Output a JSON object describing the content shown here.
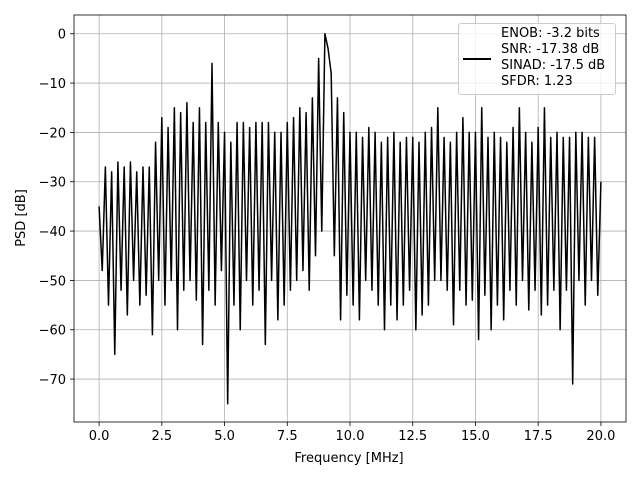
{
  "chart_data": {
    "type": "line",
    "xlabel": "Frequency [MHz]",
    "ylabel": "PSD [dB]",
    "xlim": [
      -1.0,
      21.0
    ],
    "ylim": [
      -78.7,
      3.8
    ],
    "xticks": [
      {
        "value": 0,
        "label": "0.0"
      },
      2.5,
      {
        "value": 5,
        "label": "5.0"
      },
      7.5,
      {
        "value": 10,
        "label": "10.0"
      },
      12.5,
      {
        "value": 15,
        "label": "15.0"
      },
      17.5,
      {
        "value": 20,
        "label": "20.0"
      }
    ],
    "yticks": [
      {
        "value": -70,
        "label": "−70"
      },
      {
        "value": -60,
        "label": "−60"
      },
      {
        "value": -50,
        "label": "−50"
      },
      {
        "value": -40,
        "label": "−40"
      },
      {
        "value": -30,
        "label": "−30"
      },
      {
        "value": -20,
        "label": "−20"
      },
      {
        "value": -10,
        "label": "−10"
      },
      0
    ],
    "grid": true,
    "legend": "upper right",
    "x": [
      0,
      0.125,
      0.25,
      0.375,
      0.5,
      0.625,
      0.75,
      0.875,
      1,
      1.125,
      1.25,
      1.375,
      1.5,
      1.625,
      1.75,
      1.875,
      2,
      2.125,
      2.25,
      2.375,
      2.5,
      2.625,
      2.75,
      2.875,
      3,
      3.125,
      3.25,
      3.375,
      3.5,
      3.625,
      3.75,
      3.875,
      4,
      4.125,
      4.25,
      4.375,
      4.5,
      4.625,
      4.75,
      4.875,
      5,
      5.125,
      5.25,
      5.375,
      5.5,
      5.625,
      5.75,
      5.875,
      6,
      6.125,
      6.25,
      6.375,
      6.5,
      6.625,
      6.75,
      6.875,
      7,
      7.125,
      7.25,
      7.375,
      7.5,
      7.625,
      7.75,
      7.875,
      8,
      8.125,
      8.25,
      8.375,
      8.5,
      8.625,
      8.75,
      8.875,
      9,
      9.125,
      9.25,
      9.375,
      9.5,
      9.625,
      9.75,
      9.875,
      10,
      10.125,
      10.25,
      10.375,
      10.5,
      10.625,
      10.75,
      10.875,
      11,
      11.125,
      11.25,
      11.375,
      11.5,
      11.625,
      11.75,
      11.875,
      12,
      12.125,
      12.25,
      12.375,
      12.5,
      12.625,
      12.75,
      12.875,
      13,
      13.125,
      13.25,
      13.375,
      13.5,
      13.625,
      13.75,
      13.875,
      14,
      14.125,
      14.25,
      14.375,
      14.5,
      14.625,
      14.75,
      14.875,
      15,
      15.125,
      15.25,
      15.375,
      15.5,
      15.625,
      15.75,
      15.875,
      16,
      16.125,
      16.25,
      16.375,
      16.5,
      16.625,
      16.75,
      16.875,
      17,
      17.125,
      17.25,
      17.375,
      17.5,
      17.625,
      17.75,
      17.875,
      18,
      18.125,
      18.25,
      18.375,
      18.5,
      18.625,
      18.75,
      18.875,
      19,
      19.125,
      19.25,
      19.375,
      19.5,
      19.625,
      19.75,
      19.875,
      20
    ],
    "series": [
      {
        "name": "ENOB: -3.2 bits\nSNR: -17.38 dB\nSINAD: -17.5 dB\nSFDR: 1.23",
        "color": "#000000",
        "values": [
          -35,
          -48,
          -27,
          -55,
          -28,
          -65,
          -26,
          -52,
          -27,
          -57,
          -26,
          -50,
          -28,
          -55,
          -27,
          -53,
          -27,
          -61,
          -22,
          -50,
          -17,
          -55,
          -19,
          -50,
          -15,
          -60,
          -16,
          -52,
          -14,
          -50,
          -18,
          -54,
          -15,
          -63,
          -18,
          -52,
          -6,
          -55,
          -18,
          -48,
          -20,
          -75,
          -22,
          -55,
          -18,
          -60,
          -18,
          -50,
          -19,
          -55,
          -18,
          -52,
          -18,
          -63,
          -18,
          -50,
          -20,
          -58,
          -20,
          -55,
          -18,
          -52,
          -17,
          -50,
          -15,
          -48,
          -16,
          -52,
          -13,
          -45,
          -5,
          -40,
          0,
          -3,
          -8,
          -45,
          -13,
          -58,
          -16,
          -53,
          -20,
          -55,
          -20,
          -58,
          -21,
          -50,
          -19,
          -52,
          -20,
          -55,
          -22,
          -60,
          -21,
          -55,
          -20,
          -58,
          -22,
          -55,
          -21,
          -52,
          -21,
          -60,
          -22,
          -57,
          -20,
          -55,
          -19,
          -50,
          -15,
          -50,
          -21,
          -52,
          -22,
          -59,
          -20,
          -52,
          -17,
          -55,
          -20,
          -54,
          -20,
          -62,
          -15,
          -53,
          -21,
          -60,
          -20,
          -55,
          -21,
          -58,
          -22,
          -52,
          -19,
          -55,
          -15,
          -50,
          -20,
          -56,
          -22,
          -52,
          -19,
          -57,
          -15,
          -55,
          -21,
          -52,
          -20,
          -60,
          -21,
          -52,
          -21,
          -71,
          -20,
          -50,
          -20,
          -55,
          -21,
          -50,
          -21,
          -53,
          -30
        ]
      }
    ]
  }
}
